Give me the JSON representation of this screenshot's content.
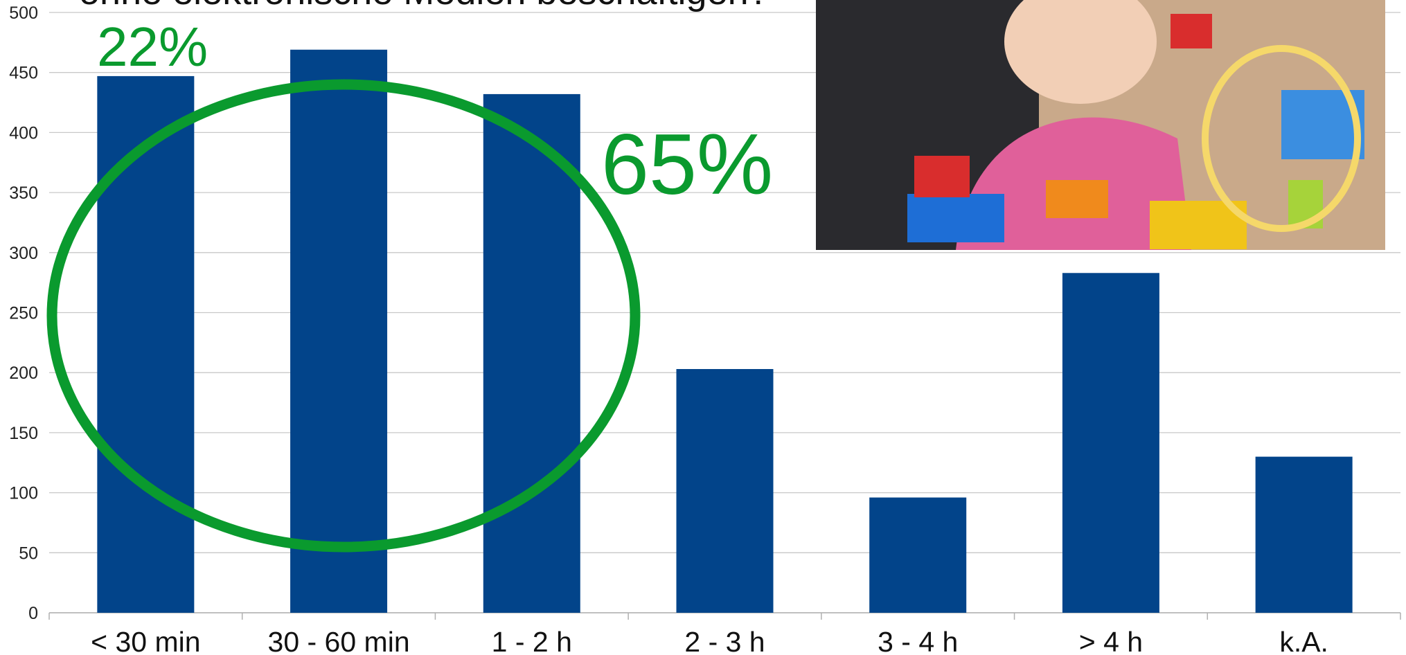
{
  "chart_data": {
    "type": "bar",
    "title": "ohne elektronische Medien beschäftigen?",
    "categories": [
      "< 30 min",
      "30 - 60 min",
      "1 - 2 h",
      "2 - 3 h",
      "3 - 4 h",
      "> 4 h",
      "k.A."
    ],
    "values": [
      447,
      469,
      432,
      203,
      96,
      283,
      130
    ],
    "color": "#02448a",
    "ylim": [
      0,
      500
    ],
    "yticks": [
      0,
      50,
      100,
      150,
      200,
      250,
      300,
      350,
      400,
      450,
      500
    ],
    "grid": true,
    "annotations": [
      "22%",
      "65%"
    ]
  }
}
